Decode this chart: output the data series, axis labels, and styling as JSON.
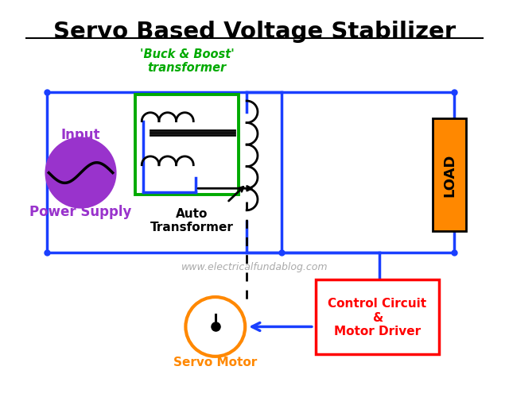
{
  "title": "Servo Based Voltage Stabilizer",
  "title_fontsize": 21,
  "title_color": "#000000",
  "bg_color": "#ffffff",
  "wire_color": "#1a3fff",
  "wire_lw": 2.5,
  "buck_boost_label": "'Buck & Boost'\ntransformer",
  "buck_boost_color": "#00aa00",
  "auto_transformer_label": "Auto\nTransformer",
  "input_label": "Input",
  "power_supply_label": "Power Supply",
  "power_supply_color": "#9933cc",
  "load_label": "LOAD",
  "load_color": "#ff8800",
  "servo_motor_label": "Servo Motor",
  "servo_motor_color": "#ff8800",
  "control_circuit_label": "Control Circuit\n&\nMotor Driver",
  "control_circuit_color": "#ff0000",
  "watermark": "www.electricalfundablog.com",
  "watermark_color": "#aaaaaa",
  "coil_color": "#000000",
  "coil_lw": 2.0
}
